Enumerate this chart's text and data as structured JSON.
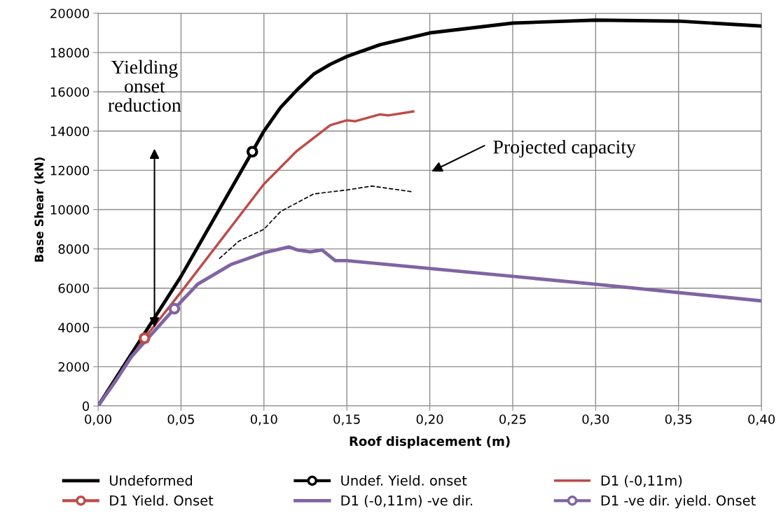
{
  "chart_data": {
    "type": "line",
    "xlabel": "Roof displacement (m)",
    "ylabel": "Base Shear (kN)",
    "xlim": [
      0,
      0.4
    ],
    "ylim": [
      0,
      20000
    ],
    "xticks": [
      {
        "value": 0,
        "label": "0,00"
      },
      {
        "value": 0.05,
        "label": "0,05"
      },
      {
        "value": 0.1,
        "label": "0,10"
      },
      {
        "value": 0.15,
        "label": "0,15"
      },
      {
        "value": 0.2,
        "label": "0,20"
      },
      {
        "value": 0.25,
        "label": "0,25"
      },
      {
        "value": 0.3,
        "label": "0,30"
      },
      {
        "value": 0.35,
        "label": "0,35"
      },
      {
        "value": 0.4,
        "label": "0,40"
      }
    ],
    "yticks": [
      0,
      2000,
      4000,
      6000,
      8000,
      10000,
      12000,
      14000,
      16000,
      18000,
      20000
    ],
    "grid": true,
    "legend": "bottom",
    "series": [
      {
        "name": "Undeformed",
        "color": "#000000",
        "marker": "none",
        "x": [
          0,
          0.05,
          0.093,
          0.1,
          0.11,
          0.12,
          0.13,
          0.14,
          0.15,
          0.17,
          0.2,
          0.25,
          0.3,
          0.35,
          0.4
        ],
        "values": [
          0,
          6600,
          12950,
          14000,
          15200,
          16100,
          16900,
          17400,
          17800,
          18400,
          19000,
          19500,
          19650,
          19600,
          19350
        ]
      },
      {
        "name": "Undef. Yield. onset",
        "color": "#000000",
        "marker": "circle",
        "x": [
          0.093
        ],
        "values": [
          12950
        ]
      },
      {
        "name": "D1 (-0,11m)",
        "color": "#be4b48",
        "marker": "none",
        "x": [
          0,
          0.028,
          0.05,
          0.1,
          0.12,
          0.14,
          0.15,
          0.155,
          0.17,
          0.175,
          0.19
        ],
        "values": [
          0,
          3450,
          5800,
          11300,
          13000,
          14300,
          14550,
          14500,
          14850,
          14800,
          15000
        ]
      },
      {
        "name": "D1 Yield. Onset",
        "color": "#be4b48",
        "marker": "circle",
        "x": [
          0.028
        ],
        "values": [
          3450
        ]
      },
      {
        "name": "D1 (-0,11m) -ve dir.",
        "color": "#8064a2",
        "marker": "none",
        "x": [
          0,
          0.01,
          0.02,
          0.046,
          0.06,
          0.08,
          0.1,
          0.115,
          0.12,
          0.128,
          0.135,
          0.143,
          0.15,
          0.2,
          0.3,
          0.4
        ],
        "values": [
          0,
          1200,
          2500,
          4950,
          6200,
          7200,
          7800,
          8100,
          7950,
          7850,
          7950,
          7400,
          7400,
          7000,
          6200,
          5350
        ]
      },
      {
        "name": "D1 -ve dir. yield. Onset",
        "color": "#8064a2",
        "marker": "circle",
        "x": [
          0.046
        ],
        "values": [
          4950
        ]
      },
      {
        "color": "#000000",
        "marker": "none",
        "line_style": "dashed",
        "x": [
          0.073,
          0.085,
          0.1,
          0.11,
          0.13,
          0.15,
          0.165,
          0.19
        ],
        "values": [
          7500,
          8400,
          9000,
          9900,
          10800,
          11000,
          11200,
          10900
        ]
      }
    ],
    "annotations": [
      "Yielding\nonset\nreduction",
      "Projected capacity"
    ]
  }
}
